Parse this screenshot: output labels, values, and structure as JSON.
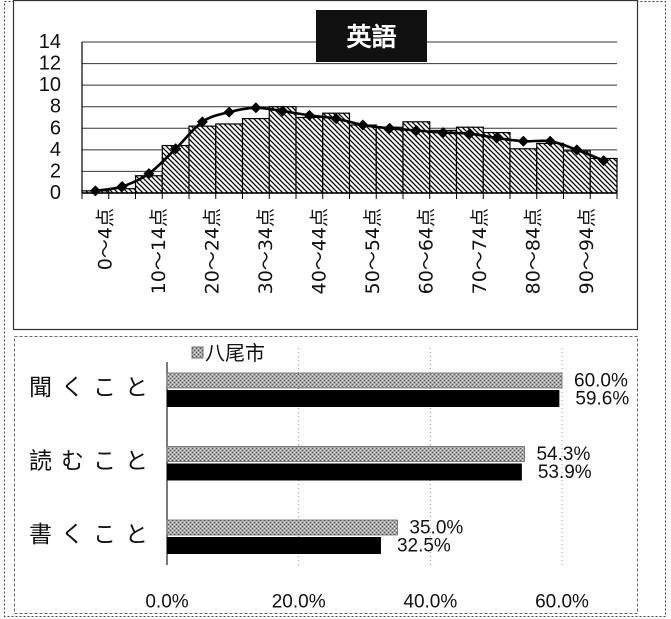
{
  "chart_data": [
    {
      "type": "bar",
      "title": "英語",
      "categories": [
        "0～4点",
        "",
        "10～14点",
        "",
        "20～24点",
        "",
        "30～34点",
        "",
        "40～44点",
        "",
        "50～54点",
        "",
        "60～64点",
        "",
        "70～74点",
        "",
        "80～84点",
        "",
        "90～94点",
        ""
      ],
      "series": [
        {
          "type": "bar",
          "color": "#000000",
          "values": [
            0.2,
            0.4,
            1.6,
            4.4,
            6.2,
            6.4,
            6.9,
            8.0,
            7.0,
            7.4,
            6.3,
            6.1,
            6.6,
            5.8,
            6.1,
            5.6,
            4.1,
            4.6,
            3.9,
            3.2
          ]
        },
        {
          "type": "line",
          "smooth": true,
          "color": "#000000",
          "values": [
            0.2,
            0.6,
            1.8,
            4.1,
            6.6,
            7.5,
            7.9,
            7.6,
            7.2,
            6.9,
            6.3,
            6.0,
            5.8,
            5.6,
            5.5,
            5.1,
            4.8,
            4.8,
            4.0,
            3.0
          ]
        }
      ],
      "y_ticks": [
        0,
        2,
        4,
        6,
        8,
        10,
        12,
        14
      ],
      "ylim": [
        0,
        14
      ],
      "grid": true,
      "title_colors": {
        "box": "#111111",
        "text": "#ffffff"
      }
    },
    {
      "type": "bar",
      "orientation": "horizontal",
      "categories": [
        "聞くこと",
        "読むこと",
        "書くこと"
      ],
      "series": [
        {
          "name": "八尾市",
          "color": "#a8a8a8",
          "values": [
            60.0,
            54.3,
            35.0
          ],
          "value_labels": [
            "60.0%",
            "54.3%",
            "35.0%"
          ]
        },
        {
          "color": "#000000",
          "values": [
            59.6,
            53.9,
            32.5
          ],
          "value_labels": [
            "59.6%",
            "53.9%",
            "32.5%"
          ]
        }
      ],
      "x_ticks": [
        "0.0%",
        "20.0%",
        "40.0%",
        "60.0%"
      ],
      "xlim": [
        0,
        60
      ],
      "grid": true,
      "legend": "top-left"
    }
  ]
}
